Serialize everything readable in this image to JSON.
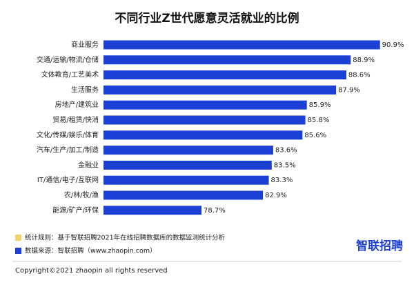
{
  "chart_data": {
    "type": "bar",
    "orientation": "horizontal",
    "title": "不同行业Z世代愿意灵活就业的比例",
    "categories": [
      "商业服务",
      "交通/运输/物流/仓储",
      "文体教育/工艺美术",
      "生活服务",
      "房地产/建筑业",
      "贸易/租赁/快消",
      "文化/传媒/娱乐/体育",
      "汽车/生产/加工/制造",
      "金融业",
      "IT/通信/电子/互联网",
      "农/林/牧/渔",
      "能源/矿产/环保"
    ],
    "values": [
      90.9,
      88.9,
      88.6,
      87.9,
      85.9,
      85.8,
      85.6,
      83.6,
      83.5,
      83.3,
      82.9,
      78.7
    ],
    "value_labels": [
      "90.9%",
      "88.9%",
      "88.6%",
      "87.9%",
      "85.9%",
      "85.8%",
      "85.6%",
      "83.6%",
      "83.5%",
      "83.3%",
      "82.9%",
      "78.7%"
    ],
    "color": "#1c3fd4",
    "xlim": [
      72,
      92
    ]
  },
  "footer": {
    "rule": "统计规则：基于智联招聘2021年在线招聘数据库的数据监测统计分析",
    "source": "数据来源：智联招聘（www.zhaopin.com）",
    "logo": "智联招聘",
    "copyright": "Copyright©2021 zhaopin  all rights reserved"
  }
}
